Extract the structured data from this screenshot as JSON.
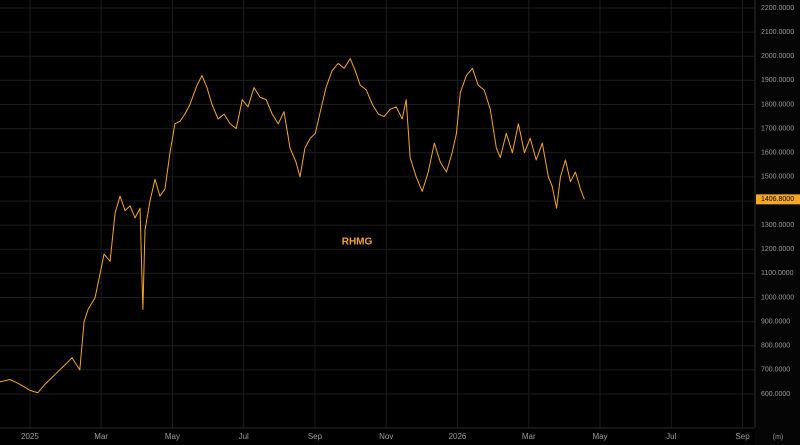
{
  "chart_data": {
    "type": "line",
    "x": [
      -0.84,
      -0.56,
      -0.28,
      0,
      0.22,
      0.42,
      0.7,
      0.98,
      1.18,
      1.4,
      1.52,
      1.63,
      1.83,
      1.97,
      2.08,
      2.25,
      2.39,
      2.53,
      2.67,
      2.81,
      2.95,
      3.09,
      3.17,
      3.23,
      3.37,
      3.51,
      3.65,
      3.79,
      3.93,
      4.07,
      4.21,
      4.35,
      4.49,
      4.69,
      4.83,
      4.97,
      5.11,
      5.28,
      5.45,
      5.62,
      5.79,
      5.96,
      6.12,
      6.29,
      6.46,
      6.63,
      6.8,
      6.97,
      7.13,
      7.3,
      7.47,
      7.58,
      7.72,
      7.87,
      8.01,
      8.15,
      8.31,
      8.48,
      8.65,
      8.82,
      8.99,
      9.13,
      9.27,
      9.44,
      9.61,
      9.78,
      9.94,
      10.11,
      10.28,
      10.45,
      10.56,
      10.67,
      10.84,
      11.01,
      11.18,
      11.35,
      11.52,
      11.69,
      11.85,
      11.97,
      12.08,
      12.25,
      12.42,
      12.58,
      12.75,
      12.92,
      13.09,
      13.2,
      13.37,
      13.54,
      13.71,
      13.88,
      14.04,
      14.21,
      14.38,
      14.55,
      14.66,
      14.78,
      14.89,
      15.03,
      15.17,
      15.31,
      15.45,
      15.56
    ],
    "series": [
      {
        "name": "RHMG",
        "color": "#f5a623",
        "values": [
          650,
          660,
          640,
          615,
          605,
          640,
          680,
          720,
          750,
          700,
          900,
          950,
          1000,
          1100,
          1180,
          1150,
          1350,
          1420,
          1360,
          1380,
          1330,
          1370,
          950,
          1280,
          1400,
          1490,
          1420,
          1450,
          1600,
          1720,
          1730,
          1760,
          1800,
          1880,
          1920,
          1870,
          1800,
          1740,
          1760,
          1720,
          1700,
          1820,
          1790,
          1870,
          1830,
          1820,
          1760,
          1720,
          1770,
          1620,
          1560,
          1500,
          1620,
          1660,
          1680,
          1770,
          1870,
          1940,
          1970,
          1950,
          1990,
          1940,
          1880,
          1860,
          1800,
          1760,
          1750,
          1780,
          1790,
          1740,
          1820,
          1580,
          1500,
          1440,
          1520,
          1640,
          1560,
          1520,
          1600,
          1680,
          1850,
          1920,
          1950,
          1880,
          1860,
          1780,
          1620,
          1580,
          1680,
          1600,
          1720,
          1600,
          1660,
          1570,
          1640,
          1500,
          1460,
          1370,
          1500,
          1570,
          1480,
          1520,
          1450,
          1406.8
        ]
      }
    ],
    "xlim": [
      -0.84,
      20.35
    ],
    "xticks": [
      {
        "value": 0,
        "label": "2025"
      },
      {
        "value": 2,
        "label": "Mar"
      },
      {
        "value": 4,
        "label": "May"
      },
      {
        "value": 6,
        "label": "Jul"
      },
      {
        "value": 8,
        "label": "Sep"
      },
      {
        "value": 10,
        "label": "Nov"
      },
      {
        "value": 12,
        "label": "2026"
      },
      {
        "value": 14,
        "label": "Mar"
      },
      {
        "value": 16,
        "label": "May"
      },
      {
        "value": 18,
        "label": "Jul"
      },
      {
        "value": 20,
        "label": "Sep"
      }
    ],
    "ylim": [
      459,
      2233
    ],
    "yticks": [
      {
        "value": 600,
        "label": "600.0000"
      },
      {
        "value": 700,
        "label": "700.0000"
      },
      {
        "value": 800,
        "label": "800.0000"
      },
      {
        "value": 900,
        "label": "900.0000"
      },
      {
        "value": 1000,
        "label": "1000.0000"
      },
      {
        "value": 1100,
        "label": "1100.0000"
      },
      {
        "value": 1200,
        "label": "1200.0000"
      },
      {
        "value": 1300,
        "label": "1300.0000"
      },
      {
        "value": 1400,
        "label": "1400.0000"
      },
      {
        "value": 1500,
        "label": "1500.0000"
      },
      {
        "value": 1600,
        "label": "1600.0000"
      },
      {
        "value": 1700,
        "label": "1700.0000"
      },
      {
        "value": 1800,
        "label": "1800.0000"
      },
      {
        "value": 1900,
        "label": "1900.0000"
      },
      {
        "value": 2000,
        "label": "2000.0000"
      },
      {
        "value": 2100,
        "label": "2100.0000"
      },
      {
        "value": 2200,
        "label": "2200.0000"
      }
    ],
    "last_price": {
      "value": 1406.8,
      "label": "1406.8000"
    },
    "grid": true,
    "settings_label": "(m)"
  }
}
